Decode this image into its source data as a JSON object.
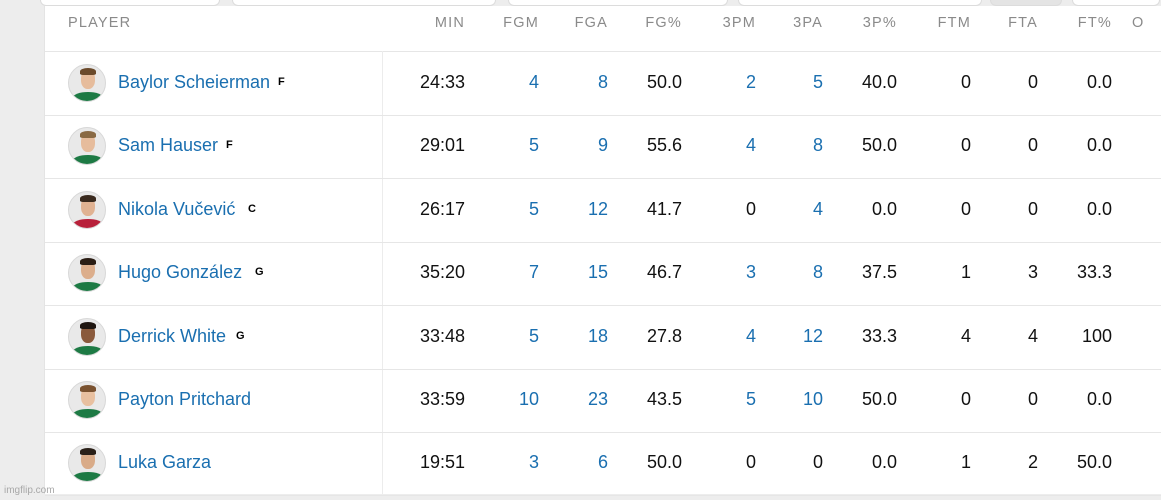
{
  "colors": {
    "link": "#1a6fb0",
    "text": "#111111",
    "header": "#8a8a8a"
  },
  "table": {
    "headers": {
      "player": "PLAYER",
      "min": "MIN",
      "fgm": "FGM",
      "fga": "FGA",
      "fgp": "FG%",
      "tpm": "3PM",
      "tpa": "3PA",
      "tpp": "3P%",
      "ftm": "FTM",
      "fta": "FTA",
      "ftp": "FT%",
      "oreb": "O"
    },
    "rows": [
      {
        "name": "Baylor Scheierman",
        "pos": "F",
        "min": "24:33",
        "fgm": "4",
        "fga": "8",
        "fgp": "50.0",
        "tpm": "2",
        "tpa": "5",
        "tpp": "40.0",
        "ftm": "0",
        "fta": "0",
        "ftp": "0.0"
      },
      {
        "name": "Sam Hauser",
        "pos": "F",
        "min": "29:01",
        "fgm": "5",
        "fga": "9",
        "fgp": "55.6",
        "tpm": "4",
        "tpa": "8",
        "tpp": "50.0",
        "ftm": "0",
        "fta": "0",
        "ftp": "0.0"
      },
      {
        "name": "Nikola Vučević",
        "pos": "C",
        "min": "26:17",
        "fgm": "5",
        "fga": "12",
        "fgp": "41.7",
        "tpm": "0",
        "tpa": "4",
        "tpp": "0.0",
        "ftm": "0",
        "fta": "0",
        "ftp": "0.0"
      },
      {
        "name": "Hugo González",
        "pos": "G",
        "min": "35:20",
        "fgm": "7",
        "fga": "15",
        "fgp": "46.7",
        "tpm": "3",
        "tpa": "8",
        "tpp": "37.5",
        "ftm": "1",
        "fta": "3",
        "ftp": "33.3"
      },
      {
        "name": "Derrick White",
        "pos": "G",
        "min": "33:48",
        "fgm": "5",
        "fga": "18",
        "fgp": "27.8",
        "tpm": "4",
        "tpa": "12",
        "tpp": "33.3",
        "ftm": "4",
        "fta": "4",
        "ftp": "100"
      },
      {
        "name": "Payton Pritchard",
        "pos": "",
        "min": "33:59",
        "fgm": "10",
        "fga": "23",
        "fgp": "43.5",
        "tpm": "5",
        "tpa": "10",
        "tpp": "50.0",
        "ftm": "0",
        "fta": "0",
        "ftp": "0.0"
      },
      {
        "name": "Luka Garza",
        "pos": "",
        "min": "19:51",
        "fgm": "3",
        "fga": "6",
        "fgp": "50.0",
        "tpm": "0",
        "tpa": "0",
        "tpp": "0.0",
        "ftm": "1",
        "fta": "2",
        "ftp": "50.0"
      }
    ]
  },
  "watermark": "imgflip.com"
}
